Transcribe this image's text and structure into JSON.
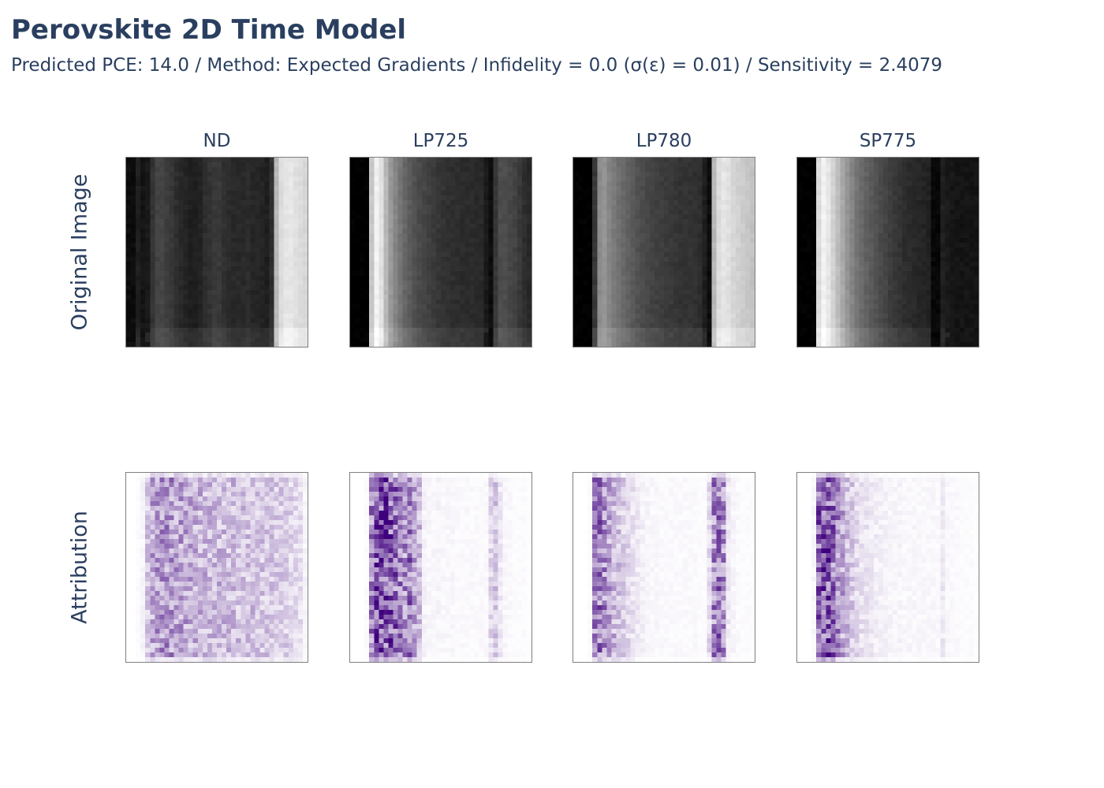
{
  "title": "Perovskite 2D Time Model",
  "subtitle": "Predicted PCE: 14.0 / Method: Expected Gradients / Infidelity = 0.0 (σ(ε) = 0.01) / Sensitivity = 2.4079",
  "colorscales": {
    "original_image": [
      "#000000",
      "#ffffff"
    ],
    "attribution": [
      "#ffffff",
      "#3f007d"
    ]
  },
  "chart_data": [
    {
      "type": "heatmap",
      "row": "Original Image",
      "title": "ND",
      "colorscale": "greys",
      "column_profile": [
        0.05,
        0.05,
        0.12,
        0.08,
        0.1,
        0.2,
        0.26,
        0.27,
        0.24,
        0.22,
        0.18,
        0.16,
        0.14,
        0.12,
        0.12,
        0.14,
        0.18,
        0.2,
        0.22,
        0.22,
        0.19,
        0.17,
        0.16,
        0.16,
        0.16,
        0.17,
        0.15,
        0.15,
        0.14,
        0.12,
        0.18,
        0.72,
        0.86,
        0.9,
        0.9,
        0.88,
        0.86,
        0.84
      ],
      "description_rows": 40
    },
    {
      "type": "heatmap",
      "row": "Original Image",
      "title": "LP725",
      "colorscale": "greys",
      "column_profile": [
        0.0,
        0.0,
        0.0,
        0.0,
        0.78,
        0.95,
        0.88,
        0.72,
        0.6,
        0.52,
        0.46,
        0.4,
        0.36,
        0.32,
        0.29,
        0.27,
        0.25,
        0.23,
        0.21,
        0.2,
        0.19,
        0.18,
        0.18,
        0.17,
        0.17,
        0.17,
        0.16,
        0.16,
        0.1,
        0.05,
        0.22,
        0.3,
        0.3,
        0.28,
        0.26,
        0.22,
        0.18,
        0.16
      ],
      "description_rows": 40
    },
    {
      "type": "heatmap",
      "row": "Original Image",
      "title": "LP780",
      "colorscale": "greys",
      "column_profile": [
        0.0,
        0.0,
        0.0,
        0.0,
        0.22,
        0.55,
        0.58,
        0.52,
        0.48,
        0.44,
        0.41,
        0.38,
        0.35,
        0.32,
        0.3,
        0.28,
        0.26,
        0.25,
        0.24,
        0.23,
        0.22,
        0.21,
        0.2,
        0.2,
        0.2,
        0.19,
        0.18,
        0.12,
        0.05,
        0.72,
        0.86,
        0.9,
        0.88,
        0.84,
        0.82,
        0.8,
        0.78,
        0.76
      ],
      "description_rows": 40
    },
    {
      "type": "heatmap",
      "row": "Original Image",
      "title": "SP775",
      "colorscale": "greys",
      "column_profile": [
        0.0,
        0.0,
        0.0,
        0.0,
        0.86,
        0.95,
        0.9,
        0.82,
        0.74,
        0.66,
        0.58,
        0.52,
        0.46,
        0.42,
        0.38,
        0.35,
        0.32,
        0.29,
        0.27,
        0.24,
        0.22,
        0.2,
        0.18,
        0.17,
        0.16,
        0.15,
        0.14,
        0.13,
        0.03,
        0.03,
        0.12,
        0.1,
        0.09,
        0.08,
        0.08,
        0.08,
        0.08,
        0.08
      ],
      "description_rows": 40
    },
    {
      "type": "heatmap",
      "row": "Attribution",
      "title": "ND",
      "colorscale": "purples",
      "column_profile": [
        0.0,
        0.0,
        0.02,
        0.05,
        0.25,
        0.4,
        0.45,
        0.48,
        0.5,
        0.48,
        0.45,
        0.42,
        0.4,
        0.38,
        0.36,
        0.34,
        0.33,
        0.32,
        0.32,
        0.32,
        0.31,
        0.3,
        0.3,
        0.29,
        0.28,
        0.28,
        0.28,
        0.27,
        0.27,
        0.26,
        0.25,
        0.24,
        0.23,
        0.22,
        0.2,
        0.18,
        0.15,
        0.05
      ],
      "description_rows": 40
    },
    {
      "type": "heatmap",
      "row": "Attribution",
      "title": "LP725",
      "colorscale": "purples",
      "column_profile": [
        0.0,
        0.0,
        0.0,
        0.02,
        0.55,
        0.85,
        0.88,
        0.82,
        0.72,
        0.66,
        0.55,
        0.5,
        0.62,
        0.4,
        0.3,
        0.06,
        0.04,
        0.04,
        0.05,
        0.04,
        0.04,
        0.04,
        0.03,
        0.03,
        0.03,
        0.03,
        0.03,
        0.03,
        0.03,
        0.18,
        0.25,
        0.1,
        0.04,
        0.03,
        0.02,
        0.02,
        0.02,
        0.01
      ],
      "description_rows": 40
    },
    {
      "type": "heatmap",
      "row": "Attribution",
      "title": "LP780",
      "colorscale": "purples",
      "column_profile": [
        0.0,
        0.0,
        0.0,
        0.02,
        0.55,
        0.6,
        0.52,
        0.42,
        0.34,
        0.28,
        0.22,
        0.18,
        0.14,
        0.1,
        0.07,
        0.05,
        0.04,
        0.04,
        0.03,
        0.03,
        0.03,
        0.03,
        0.03,
        0.03,
        0.03,
        0.03,
        0.02,
        0.02,
        0.18,
        0.55,
        0.6,
        0.5,
        0.1,
        0.05,
        0.03,
        0.02,
        0.02,
        0.02
      ],
      "description_rows": 40
    },
    {
      "type": "heatmap",
      "row": "Attribution",
      "title": "SP775",
      "colorscale": "purples",
      "column_profile": [
        0.0,
        0.0,
        0.0,
        0.04,
        0.7,
        0.85,
        0.82,
        0.68,
        0.52,
        0.4,
        0.3,
        0.24,
        0.18,
        0.14,
        0.12,
        0.1,
        0.08,
        0.07,
        0.06,
        0.05,
        0.05,
        0.05,
        0.04,
        0.04,
        0.04,
        0.04,
        0.04,
        0.04,
        0.04,
        0.03,
        0.1,
        0.04,
        0.03,
        0.03,
        0.02,
        0.02,
        0.02,
        0.01
      ],
      "description_rows": 40
    }
  ],
  "column_titles": [
    "ND",
    "LP725",
    "LP780",
    "SP775"
  ],
  "row_titles": [
    "Original Image",
    "Attribution"
  ]
}
